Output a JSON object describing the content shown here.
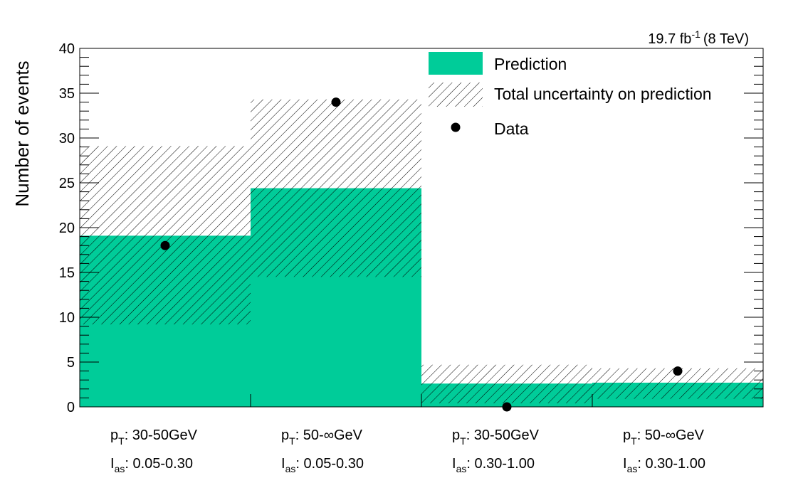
{
  "chart_data": {
    "type": "bar",
    "ylabel": "Number of events",
    "ylim": [
      0,
      40
    ],
    "yticks": [
      0,
      5,
      10,
      15,
      20,
      25,
      30,
      35,
      40
    ],
    "lumi": {
      "value": "19.7 fb",
      "exponent": "-1",
      "energy": "(8 TeV)"
    },
    "categories": [
      {
        "pt_sym": "p",
        "pt_sub": "T",
        "pt_range": ": 30-50GeV",
        "ias_sym": "I",
        "ias_sub": "as",
        "ias_range": ": 0.05-0.30"
      },
      {
        "pt_sym": "p",
        "pt_sub": "T",
        "pt_range": ": 50-∞GeV",
        "ias_sym": "I",
        "ias_sub": "as",
        "ias_range": ": 0.05-0.30"
      },
      {
        "pt_sym": "p",
        "pt_sub": "T",
        "pt_range": ": 30-50GeV",
        "ias_sym": "I",
        "ias_sub": "as",
        "ias_range": ": 0.30-1.00"
      },
      {
        "pt_sym": "p",
        "pt_sub": "T",
        "pt_range": ": 50-∞GeV",
        "ias_sym": "I",
        "ias_sub": "as",
        "ias_range": ": 0.30-1.00"
      }
    ],
    "series": [
      {
        "name": "Prediction",
        "values": [
          19.1,
          24.4,
          2.6,
          2.7
        ]
      },
      {
        "name": "Total uncertainty on prediction",
        "low": [
          9.2,
          14.5,
          0.4,
          0.9
        ],
        "high": [
          29.1,
          34.3,
          4.7,
          4.3
        ]
      },
      {
        "name": "Data",
        "values": [
          18,
          34,
          0,
          4
        ]
      }
    ],
    "colors": {
      "prediction": "#00CC99",
      "data": "#000000",
      "hatch": "#000000"
    },
    "legend_position": "top-right",
    "grid": false
  }
}
